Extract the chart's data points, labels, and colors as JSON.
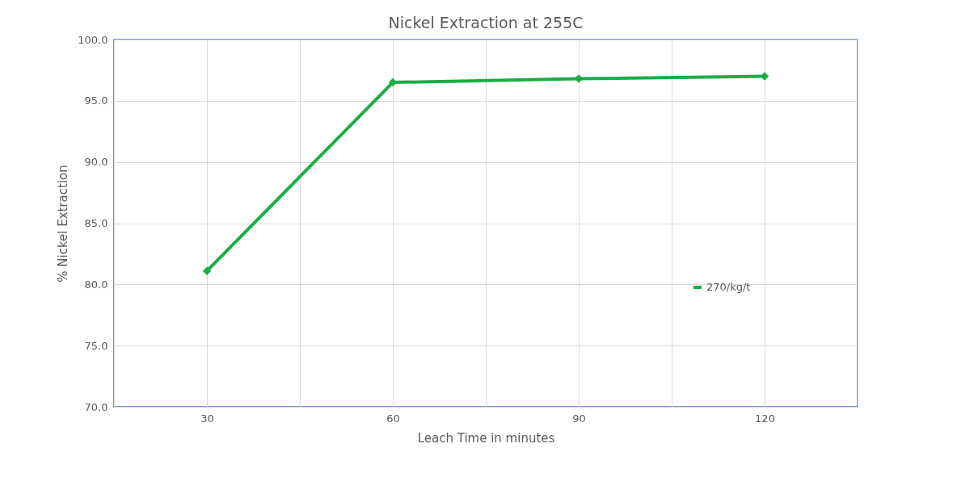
{
  "chart_data": {
    "type": "line",
    "title": "Nickel Extraction at 255C",
    "xlabel": "Leach Time in minutes",
    "ylabel": "% Nickel Extraction",
    "x": [
      30,
      60,
      90,
      120
    ],
    "series": [
      {
        "name": "270/kg/t",
        "color": "#1aad45",
        "values": [
          81.1,
          96.5,
          96.8,
          97.0
        ]
      }
    ],
    "xlim": [
      15,
      135
    ],
    "xticks": [
      {
        "value": 15,
        "label": null
      },
      30,
      {
        "value": 45,
        "label": null
      },
      60,
      {
        "value": 75,
        "label": null
      },
      90,
      {
        "value": 105,
        "label": null
      },
      120,
      {
        "value": 135,
        "label": null
      }
    ],
    "ylim": [
      70,
      100
    ],
    "yticks": [
      {
        "value": 70,
        "label": "70.0"
      },
      {
        "value": 75,
        "label": "75.0"
      },
      {
        "value": 80,
        "label": "80.0"
      },
      {
        "value": 85,
        "label": "85.0"
      },
      {
        "value": 90,
        "label": "90.0"
      },
      {
        "value": 95,
        "label": "95.0"
      },
      {
        "value": 100,
        "label": "100.0"
      }
    ],
    "grid": true,
    "legend": "right",
    "marker": "diamond",
    "line_style": "solid"
  }
}
